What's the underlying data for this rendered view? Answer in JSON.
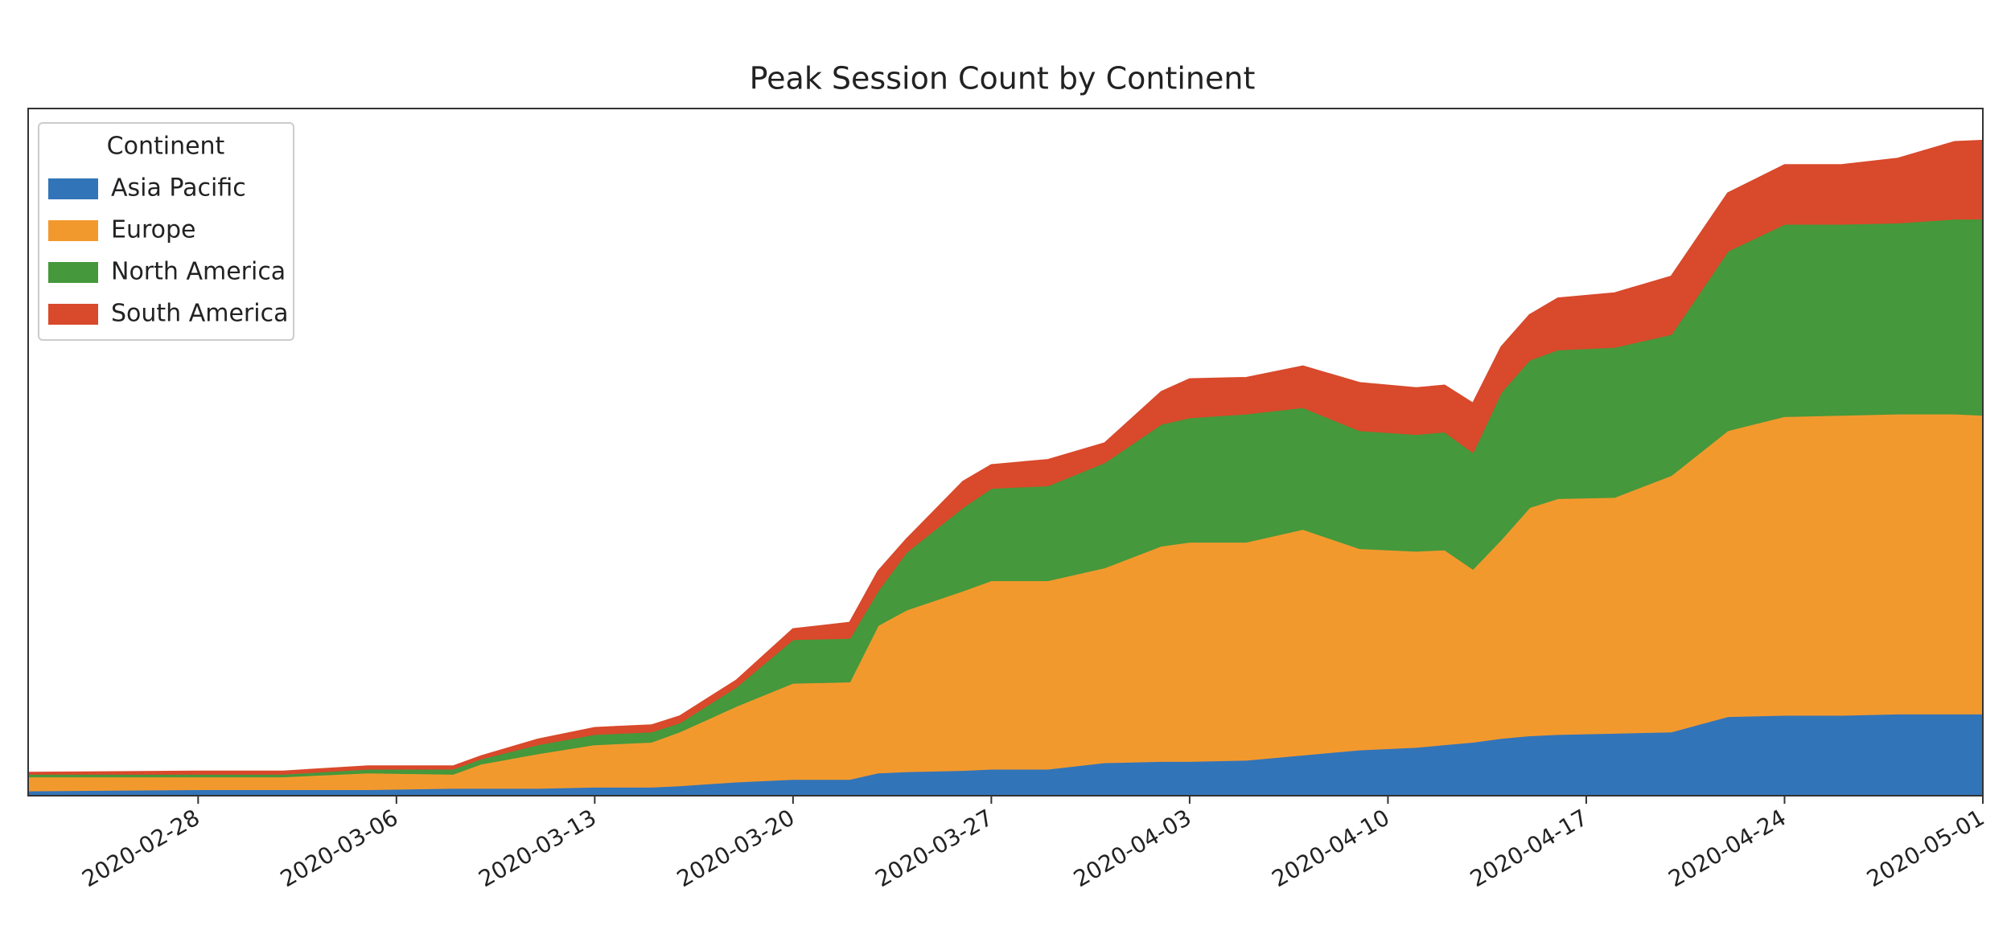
{
  "chart_data": {
    "type": "stacked_area",
    "title": "Peak Session Count by Continent",
    "legend_title": "Continent",
    "legend": "upper left",
    "x": [
      "2020-02-22",
      "2020-02-28",
      "2020-03-02",
      "2020-03-05",
      "2020-03-08",
      "2020-03-09",
      "2020-03-11",
      "2020-03-13",
      "2020-03-15",
      "2020-03-16",
      "2020-03-18",
      "2020-03-20",
      "2020-03-22",
      "2020-03-23",
      "2020-03-24",
      "2020-03-26",
      "2020-03-27",
      "2020-03-29",
      "2020-03-31",
      "2020-04-02",
      "2020-04-03",
      "2020-04-05",
      "2020-04-07",
      "2020-04-09",
      "2020-04-11",
      "2020-04-12",
      "2020-04-13",
      "2020-04-14",
      "2020-04-15",
      "2020-04-16",
      "2020-04-18",
      "2020-04-20",
      "2020-04-22",
      "2020-04-24",
      "2020-04-26",
      "2020-04-28",
      "2020-04-30",
      "2020-05-01"
    ],
    "xlim": [
      "2020-02-22",
      "2020-05-01"
    ],
    "xticks": [
      "2020-02-28",
      "2020-03-06",
      "2020-03-13",
      "2020-03-20",
      "2020-03-27",
      "2020-04-03",
      "2020-04-10",
      "2020-04-17",
      "2020-04-24",
      "2020-05-01"
    ],
    "ylim": [
      0,
      536
    ],
    "series": [
      {
        "name": "Asia Pacific",
        "color": "#3274b8",
        "values": [
          4,
          5,
          5,
          5,
          6,
          6,
          6,
          7,
          7,
          8,
          11,
          13,
          13,
          18,
          19,
          20,
          21,
          21,
          26,
          27,
          27,
          28,
          32,
          36,
          38,
          40,
          42,
          45,
          47,
          48,
          49,
          50,
          62,
          63,
          63,
          64,
          64,
          64
        ]
      },
      {
        "name": "Europe",
        "color": "#f2992e",
        "values": [
          11,
          10,
          10,
          13,
          11,
          19,
          27,
          33,
          35,
          42,
          59,
          75,
          76,
          115,
          126,
          140,
          147,
          147,
          152,
          168,
          171,
          170,
          176,
          157,
          153,
          152,
          135,
          155,
          178,
          184,
          184,
          200,
          223,
          233,
          234,
          234,
          234,
          233
        ]
      },
      {
        "name": "North America",
        "color": "#45983b",
        "values": [
          2,
          2,
          2,
          3,
          4,
          4,
          7,
          8,
          8,
          7,
          15,
          34,
          34,
          27,
          45,
          65,
          72,
          74,
          82,
          95,
          97,
          100,
          95,
          92,
          91,
          92,
          91,
          115,
          115,
          116,
          117,
          110,
          140,
          150,
          149,
          149,
          152,
          153
        ]
      },
      {
        "name": "South America",
        "color": "#d9492b",
        "values": [
          1,
          2,
          2,
          2,
          2,
          2,
          4,
          5,
          5,
          5,
          5,
          8,
          12,
          15,
          10,
          20,
          18,
          20,
          15,
          25,
          30,
          28,
          32,
          37,
          36,
          36,
          38,
          35,
          35,
          40,
          42,
          45,
          45,
          46,
          46,
          50,
          60,
          61
        ]
      }
    ]
  }
}
